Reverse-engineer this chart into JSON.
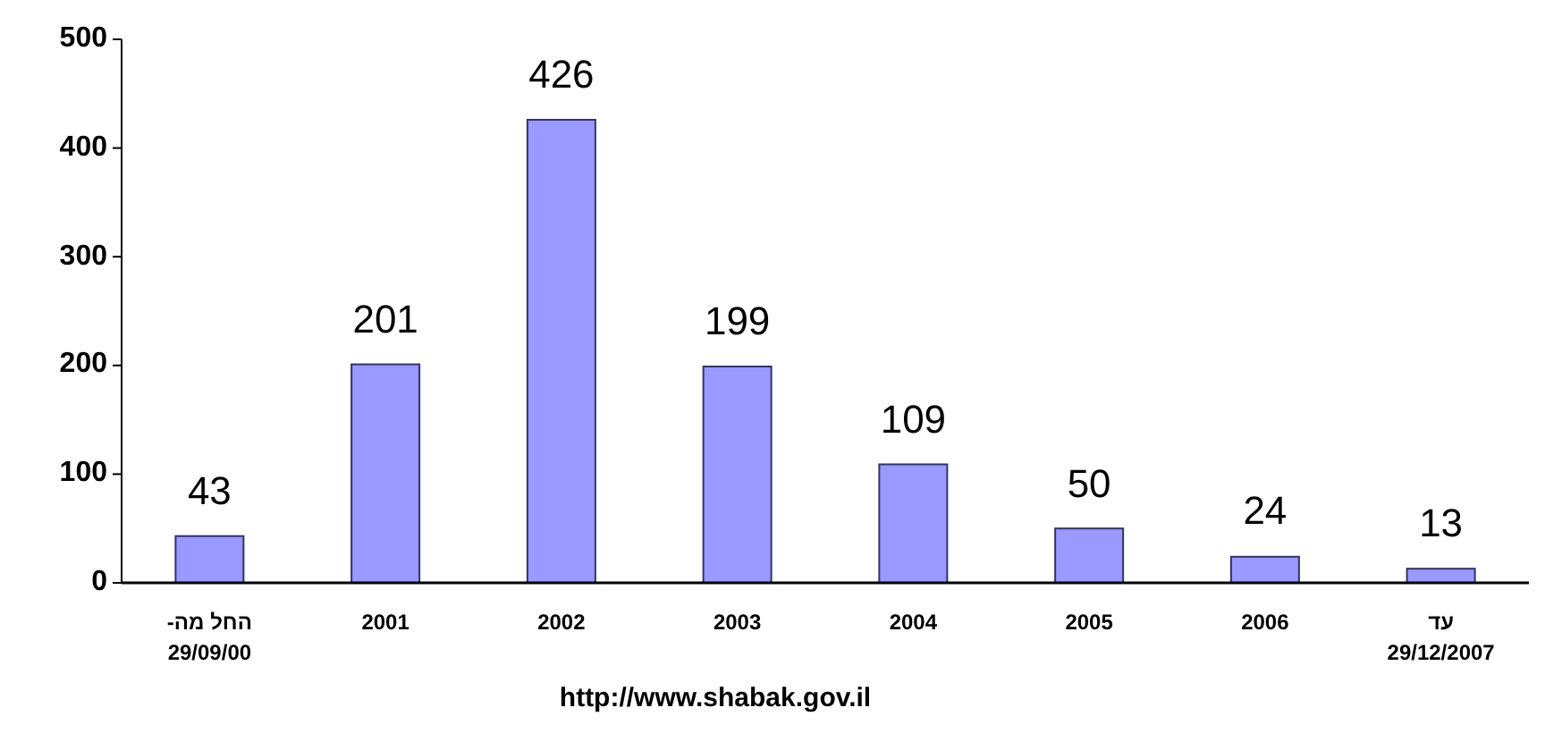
{
  "chart_data": {
    "type": "bar",
    "categories": [
      "החל מה- 29/09/00",
      "2001",
      "2002",
      "2003",
      "2004",
      "2005",
      "2006",
      "עד 29/12/2007"
    ],
    "values": [
      43,
      201,
      426,
      199,
      109,
      50,
      24,
      13
    ],
    "color": "#9999ff",
    "ylim": [
      0,
      500
    ],
    "yticks": [
      0,
      100,
      200,
      300,
      400,
      500
    ],
    "data_labels": true,
    "grid": false,
    "annotations": [
      "http://www.shabak.gov.il"
    ]
  }
}
